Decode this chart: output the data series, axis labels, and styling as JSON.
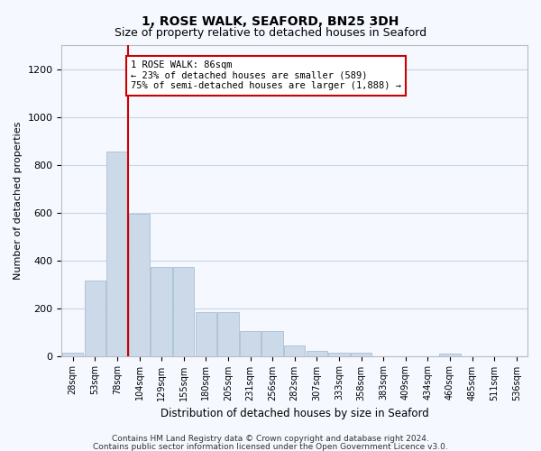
{
  "title": "1, ROSE WALK, SEAFORD, BN25 3DH",
  "subtitle": "Size of property relative to detached houses in Seaford",
  "xlabel": "Distribution of detached houses by size in Seaford",
  "ylabel": "Number of detached properties",
  "footnote1": "Contains HM Land Registry data © Crown copyright and database right 2024.",
  "footnote2": "Contains public sector information licensed under the Open Government Licence v3.0.",
  "bar_labels": [
    "28sqm",
    "53sqm",
    "78sqm",
    "104sqm",
    "129sqm",
    "155sqm",
    "180sqm",
    "205sqm",
    "231sqm",
    "256sqm",
    "282sqm",
    "307sqm",
    "333sqm",
    "358sqm",
    "383sqm",
    "409sqm",
    "434sqm",
    "460sqm",
    "485sqm",
    "511sqm",
    "536sqm"
  ],
  "bar_values": [
    15,
    315,
    855,
    595,
    370,
    370,
    185,
    185,
    105,
    105,
    45,
    20,
    15,
    15,
    0,
    0,
    0,
    10,
    0,
    0,
    0
  ],
  "bar_color": "#ccd9e8",
  "bar_edge_color": "#a8bfd4",
  "ylim": [
    0,
    1300
  ],
  "yticks": [
    0,
    200,
    400,
    600,
    800,
    1000,
    1200
  ],
  "red_line_index": 2,
  "annotation_text": "1 ROSE WALK: 86sqm\n← 23% of detached houses are smaller (589)\n75% of semi-detached houses are larger (1,888) →",
  "annotation_box_color": "#ffffff",
  "annotation_border_color": "#cc0000",
  "background_color": "#f5f8ff",
  "grid_color": "#c8d4e8",
  "title_fontsize": 10,
  "subtitle_fontsize": 9
}
